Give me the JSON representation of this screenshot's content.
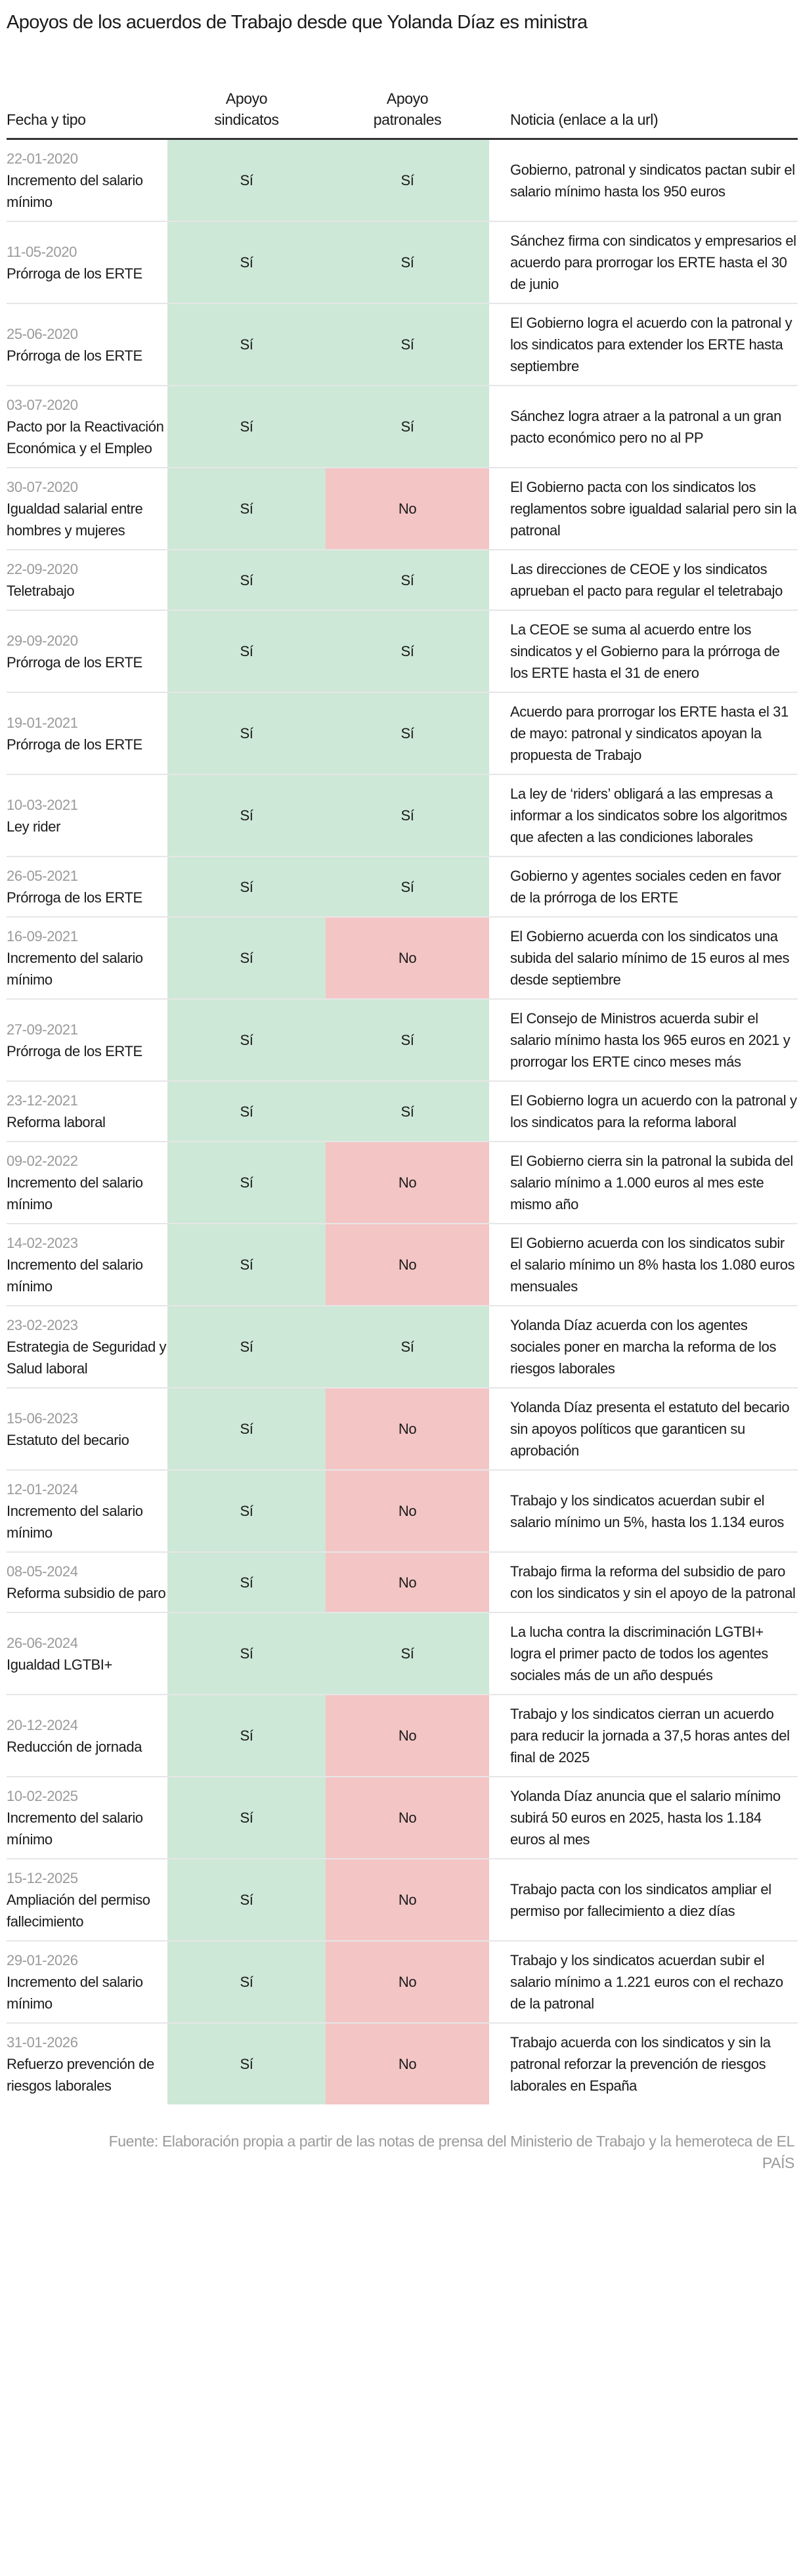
{
  "title": "Apoyos de los acuerdos de Trabajo desde que Yolanda Díaz es ministra",
  "headers": [
    "Fecha y tipo",
    "Apoyo sindicatos",
    "Apoyo patronales",
    "Noticia (enlace a la url)"
  ],
  "colors": {
    "yes": "#cde8d6",
    "no": "#f3c5c5"
  },
  "rows": [
    {
      "date": "22-01-2020",
      "type": "Incremento del salario mínimo",
      "sindicatos": "Sí",
      "patronales": "Sí",
      "news": "Gobierno, patronal y sindicatos pactan subir el salario mínimo hasta los 950 euros"
    },
    {
      "date": "11-05-2020",
      "type": "Prórroga de los ERTE",
      "sindicatos": "Sí",
      "patronales": "Sí",
      "news": "Sánchez firma con sindicatos y empresarios el acuerdo para prorrogar los ERTE hasta el 30 de junio"
    },
    {
      "date": "25-06-2020",
      "type": "Prórroga de los ERTE",
      "sindicatos": "Sí",
      "patronales": "Sí",
      "news": "El Gobierno logra el acuerdo con la patronal y los sindicatos para extender los ERTE hasta septiembre"
    },
    {
      "date": "03-07-2020",
      "type": "Pacto por la Reactivación Económica y el Empleo",
      "sindicatos": "Sí",
      "patronales": "Sí",
      "news": "Sánchez logra atraer a la patronal a un gran pacto económico pero no al PP"
    },
    {
      "date": "30-07-2020",
      "type": "Igualdad salarial entre hombres y mujeres",
      "sindicatos": "Sí",
      "patronales": "No",
      "news": "El Gobierno pacta con los sindicatos los reglamentos sobre igualdad salarial pero sin la patronal"
    },
    {
      "date": "22-09-2020",
      "type": "Teletrabajo",
      "sindicatos": "Sí",
      "patronales": "Sí",
      "news": "Las direcciones de CEOE y los sindicatos aprueban el pacto para regular el teletrabajo"
    },
    {
      "date": "29-09-2020",
      "type": "Prórroga de los ERTE",
      "sindicatos": "Sí",
      "patronales": "Sí",
      "news": "La CEOE se suma al acuerdo entre los sindicatos y el Gobierno para la prórroga de los ERTE hasta el 31 de enero"
    },
    {
      "date": "19-01-2021",
      "type": "Prórroga de los ERTE",
      "sindicatos": "Sí",
      "patronales": "Sí",
      "news": "Acuerdo para prorrogar los ERTE hasta el 31 de mayo: patronal y sindicatos apoyan la propuesta de Trabajo"
    },
    {
      "date": "10-03-2021",
      "type": "Ley rider",
      "sindicatos": "Sí",
      "patronales": "Sí",
      "news": "La ley de ‘riders’ obligará a las empresas a informar a los sindicatos sobre los algoritmos que afecten a las condiciones laborales"
    },
    {
      "date": "26-05-2021",
      "type": "Prórroga de los ERTE",
      "sindicatos": "Sí",
      "patronales": "Sí",
      "news": "Gobierno y agentes sociales ceden en favor de la prórroga de los ERTE"
    },
    {
      "date": "16-09-2021",
      "type": "Incremento del salario mínimo",
      "sindicatos": "Sí",
      "patronales": "No",
      "news": "El Gobierno acuerda con los sindicatos una subida del salario mínimo de 15 euros al mes desde septiembre"
    },
    {
      "date": "27-09-2021",
      "type": "Prórroga de los ERTE",
      "sindicatos": "Sí",
      "patronales": "Sí",
      "news": "El Consejo de Ministros acuerda subir el salario mínimo hasta los 965 euros en 2021 y prorrogar los ERTE cinco meses más"
    },
    {
      "date": "23-12-2021",
      "type": "Reforma laboral",
      "sindicatos": "Sí",
      "patronales": "Sí",
      "news": "El Gobierno logra un acuerdo con la patronal y los sindicatos para la reforma laboral"
    },
    {
      "date": "09-02-2022",
      "type": "Incremento del salario mínimo",
      "sindicatos": "Sí",
      "patronales": "No",
      "news": "El Gobierno cierra sin la patronal la subida del salario mínimo a 1.000 euros al mes este mismo año"
    },
    {
      "date": "14-02-2023",
      "type": "Incremento del salario mínimo",
      "sindicatos": "Sí",
      "patronales": "No",
      "news": "El Gobierno acuerda con los sindicatos subir el salario mínimo un 8% hasta los 1.080 euros mensuales"
    },
    {
      "date": "23-02-2023",
      "type": "Estrategia de Seguridad y Salud laboral",
      "sindicatos": "Sí",
      "patronales": "Sí",
      "news": "Yolanda Díaz acuerda con los agentes sociales poner en marcha la reforma de los riesgos laborales"
    },
    {
      "date": "15-06-2023",
      "type": "Estatuto del becario",
      "sindicatos": "Sí",
      "patronales": "No",
      "news": "Yolanda Díaz presenta el estatuto del becario sin apoyos políticos que garanticen su aprobación"
    },
    {
      "date": "12-01-2024",
      "type": "Incremento del salario mínimo",
      "sindicatos": "Sí",
      "patronales": "No",
      "news": "Trabajo y los sindicatos acuerdan subir el salario mínimo un 5%, hasta los 1.134 euros"
    },
    {
      "date": "08-05-2024",
      "type": "Reforma subsidio de paro",
      "sindicatos": "Sí",
      "patronales": "No",
      "news": "Trabajo firma la reforma del subsidio de paro con los sindicatos y sin el apoyo de la patronal"
    },
    {
      "date": "26-06-2024",
      "type": "Igualdad LGTBI+",
      "sindicatos": "Sí",
      "patronales": "Sí",
      "news": "La lucha contra la discriminación LGTBI+ logra el primer pacto de todos los agentes sociales más de un año después"
    },
    {
      "date": "20-12-2024",
      "type": "Reducción de jornada",
      "sindicatos": "Sí",
      "patronales": "No",
      "news": "Trabajo y los sindicatos cierran un acuerdo para reducir la jornada a 37,5 horas antes del final de 2025"
    },
    {
      "date": "10-02-2025",
      "type": "Incremento del salario mínimo",
      "sindicatos": "Sí",
      "patronales": "No",
      "news": "Yolanda Díaz anuncia que el salario mínimo subirá 50 euros en 2025, hasta los 1.184 euros al mes"
    },
    {
      "date": "15-12-2025",
      "type": "Ampliación del permiso fallecimiento",
      "sindicatos": "Sí",
      "patronales": "No",
      "news": "Trabajo pacta con los sindicatos ampliar el permiso por fallecimiento a diez días"
    },
    {
      "date": "29-01-2026",
      "type": "Incremento del salario mínimo",
      "sindicatos": "Sí",
      "patronales": "No",
      "news": "Trabajo y los sindicatos acuerdan subir el salario mínimo a 1.221 euros con el rechazo de la patronal"
    },
    {
      "date": "31-01-2026",
      "type": "Refuerzo prevención de riesgos laborales",
      "sindicatos": "Sí",
      "patronales": "No",
      "news": "Trabajo acuerda con los sindicatos y sin la patronal reforzar la prevención de riesgos laborales en España"
    }
  ],
  "footer": "Fuente: Elaboración propia a partir de las notas de prensa del Ministerio de Trabajo y la hemeroteca de EL PAÍS"
}
